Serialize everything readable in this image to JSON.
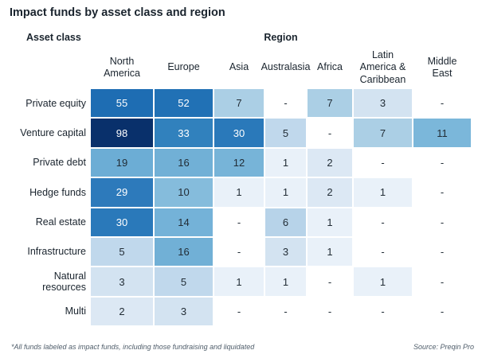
{
  "title": "Impact funds by asset class and region",
  "group_labels": {
    "rows": "Asset class",
    "cols": "Region"
  },
  "footnote": "*All funds labeled as impact funds, including those fundraising and liquidated",
  "source": "Source: Preqin Pro",
  "chart_data": {
    "type": "heatmap",
    "title": "Impact funds by asset class and region",
    "row_axis_label": "Asset class",
    "col_axis_label": "Region",
    "columns": [
      "North America",
      "Europe",
      "Asia",
      "Australasia",
      "Africa",
      "Latin America & Caribbean",
      "Middle East"
    ],
    "column_labels_display": [
      "North\nAmerica",
      "Europe",
      "Asia",
      "Australasia",
      "Africa",
      "Latin\nAmerica &\nCaribbean",
      "Middle\nEast"
    ],
    "rows": [
      "Private equity",
      "Venture capital",
      "Private debt",
      "Hedge funds",
      "Real estate",
      "Infrastructure",
      "Natural resources",
      "Multi"
    ],
    "values": [
      [
        55,
        52,
        7,
        null,
        7,
        3,
        null
      ],
      [
        98,
        33,
        30,
        5,
        null,
        7,
        11
      ],
      [
        19,
        16,
        12,
        1,
        2,
        null,
        null
      ],
      [
        29,
        10,
        1,
        1,
        2,
        1,
        null
      ],
      [
        30,
        14,
        null,
        6,
        1,
        null,
        null
      ],
      [
        5,
        16,
        null,
        3,
        1,
        null,
        null
      ],
      [
        3,
        5,
        1,
        1,
        null,
        1,
        null
      ],
      [
        2,
        3,
        null,
        null,
        null,
        null,
        null
      ]
    ],
    "null_display": "-",
    "colormap": "Blues",
    "grid": false,
    "legend": "none",
    "color_scale": {
      "1": "#e9f1f9",
      "2": "#dce8f4",
      "3": "#d3e3f1",
      "5": "#c0d8ec",
      "6": "#b7d3e9",
      "7": "#abcfe5",
      "10": "#85bcdc",
      "11": "#7bb7da",
      "12": "#77b4d8",
      "14": "#74b2d8",
      "16": "#71b0d6",
      "19": "#6cadd5",
      "29": "#2d7abb",
      "30": "#2a79ba",
      "33": "#3181bd",
      "52": "#2171b5",
      "55": "#1e6db3",
      "98": "#09306b"
    },
    "null_color": "#ffffff",
    "light_text_threshold": 29,
    "text_light": "#ffffff",
    "text_dark": "#222d36"
  }
}
